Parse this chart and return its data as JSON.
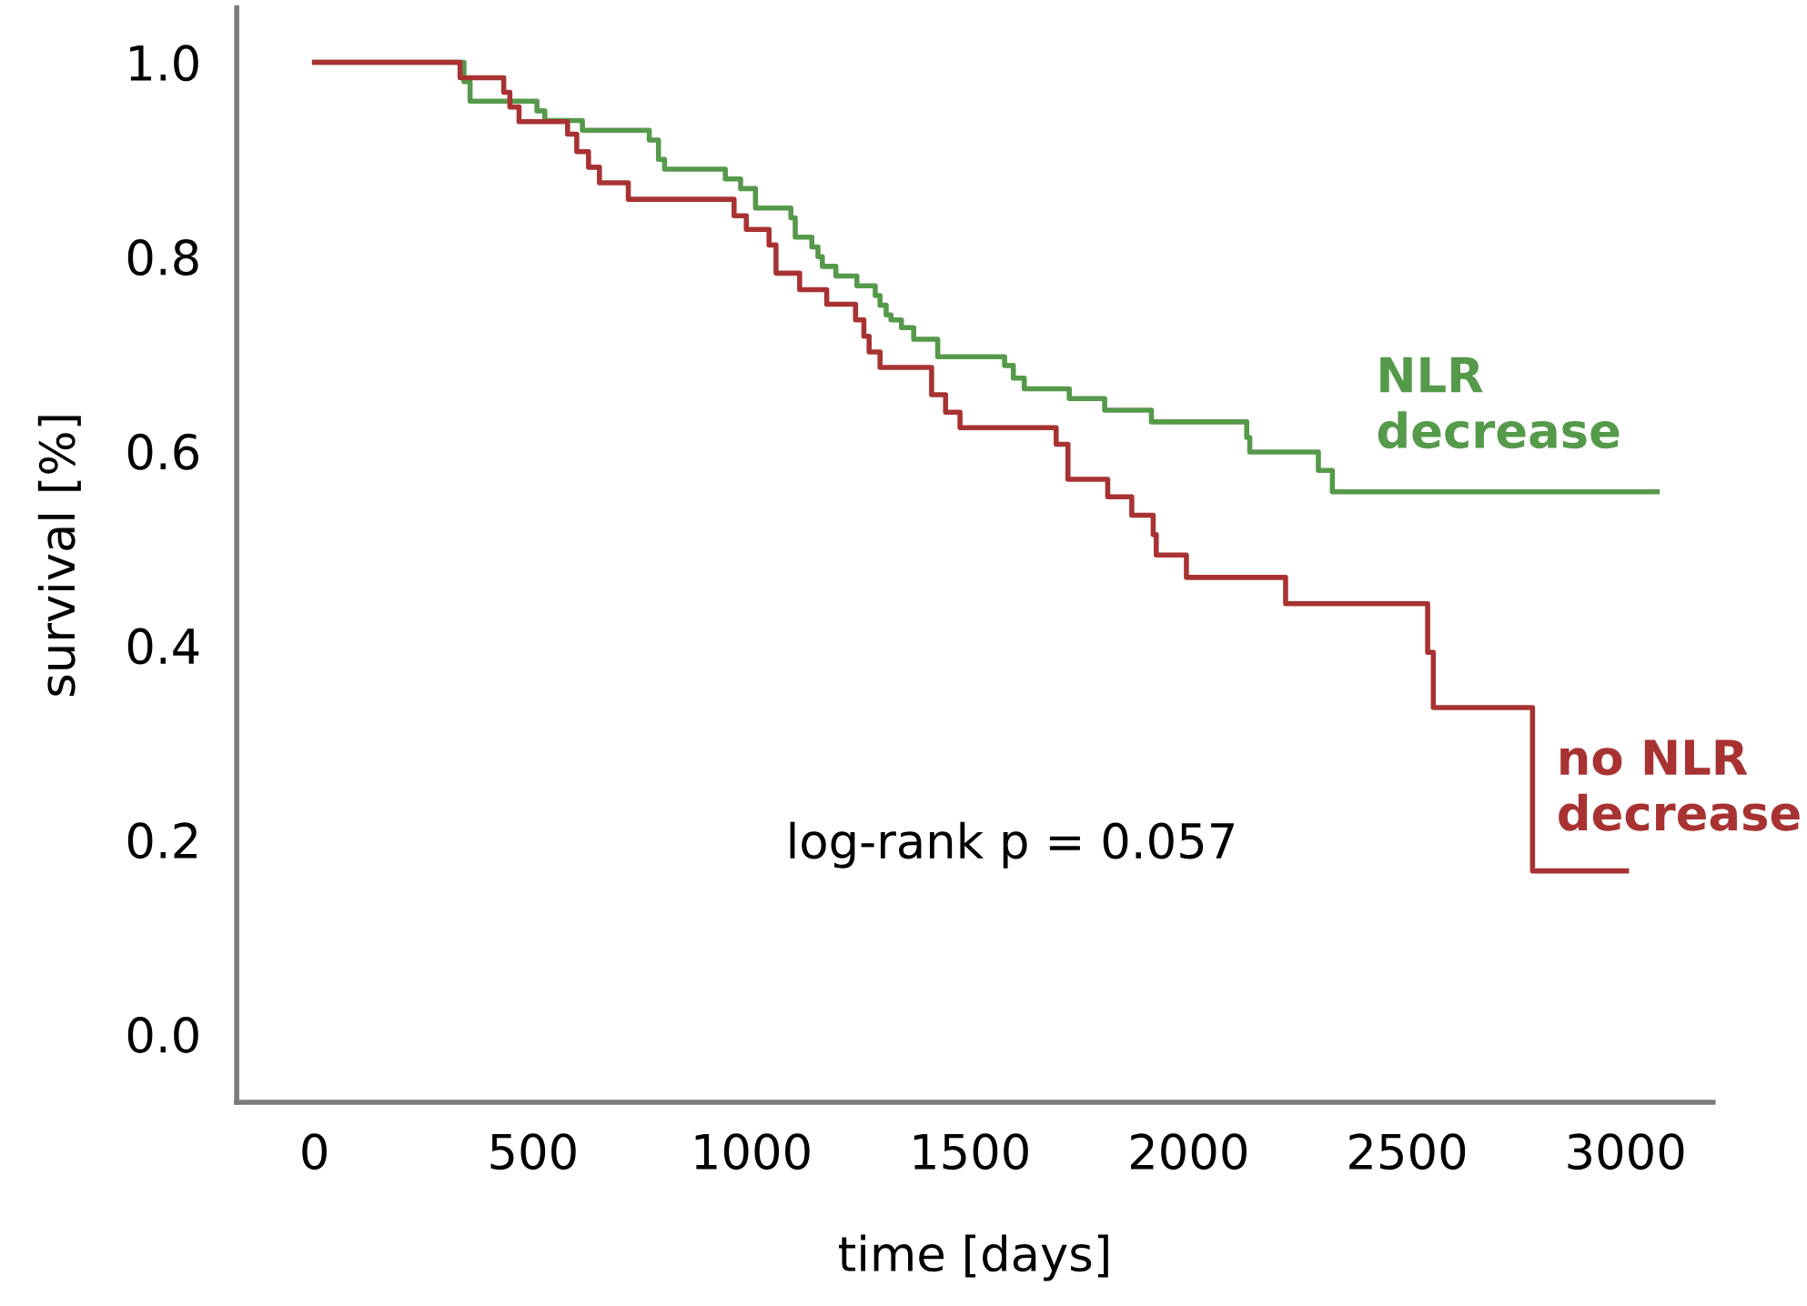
{
  "chart_data": {
    "type": "step",
    "xlabel": "time [days]",
    "ylabel": "survival [%]",
    "annotations": [
      "log-rank p = 0.057"
    ],
    "xlim": [
      -178,
      3200
    ],
    "ylim": [
      -0.07,
      1.056
    ],
    "xticks": [
      0,
      500,
      1000,
      1500,
      2000,
      2500,
      3000
    ],
    "yticks": [
      {
        "value": 0,
        "label": "0.0"
      },
      {
        "value": 0.2,
        "label": "0.2"
      },
      {
        "value": 0.4,
        "label": "0.4"
      },
      {
        "value": 0.6,
        "label": "0.6"
      },
      {
        "value": 0.8,
        "label": "0.8"
      },
      {
        "value": 1,
        "label": "1.0"
      }
    ],
    "series": [
      {
        "name": "NLR\ndecrease",
        "color": "#55994a",
        "x": [
          0,
          342,
          356,
          509,
          527,
          613,
          766,
          787,
          801,
          940,
          975,
          1009,
          1090,
          1100,
          1138,
          1152,
          1162,
          1193,
          1241,
          1283,
          1294,
          1308,
          1319,
          1343,
          1371,
          1426,
          1579,
          1599,
          1624,
          1727,
          1808,
          1915,
          2133,
          2140,
          2297,
          2329,
          3072
        ],
        "values": [
          1.0,
          0.98,
          0.96,
          0.95,
          0.94,
          0.93,
          0.92,
          0.9,
          0.89,
          0.88,
          0.87,
          0.85,
          0.84,
          0.82,
          0.81,
          0.8,
          0.79,
          0.78,
          0.77,
          0.76,
          0.75,
          0.74,
          0.735,
          0.727,
          0.715,
          0.697,
          0.688,
          0.675,
          0.664,
          0.654,
          0.642,
          0.63,
          0.614,
          0.599,
          0.58,
          0.558,
          0.558
        ]
      },
      {
        "name": "no NLR\ndecrease",
        "color": "#a83232",
        "x": [
          0,
          333,
          433,
          447,
          468,
          579,
          600,
          627,
          652,
          718,
          960,
          988,
          1040,
          1056,
          1110,
          1172,
          1238,
          1257,
          1269,
          1294,
          1412,
          1444,
          1477,
          1697,
          1724,
          1815,
          1870,
          1919,
          1926,
          1995,
          2222,
          2547,
          2560,
          2787,
          3002
        ],
        "values": [
          1.0,
          0.984,
          0.969,
          0.954,
          0.939,
          0.926,
          0.908,
          0.892,
          0.876,
          0.859,
          0.842,
          0.828,
          0.812,
          0.783,
          0.766,
          0.751,
          0.735,
          0.718,
          0.702,
          0.686,
          0.658,
          0.64,
          0.624,
          0.607,
          0.571,
          0.553,
          0.534,
          0.514,
          0.493,
          0.47,
          0.443,
          0.393,
          0.336,
          0.168,
          0.168
        ]
      }
    ]
  }
}
